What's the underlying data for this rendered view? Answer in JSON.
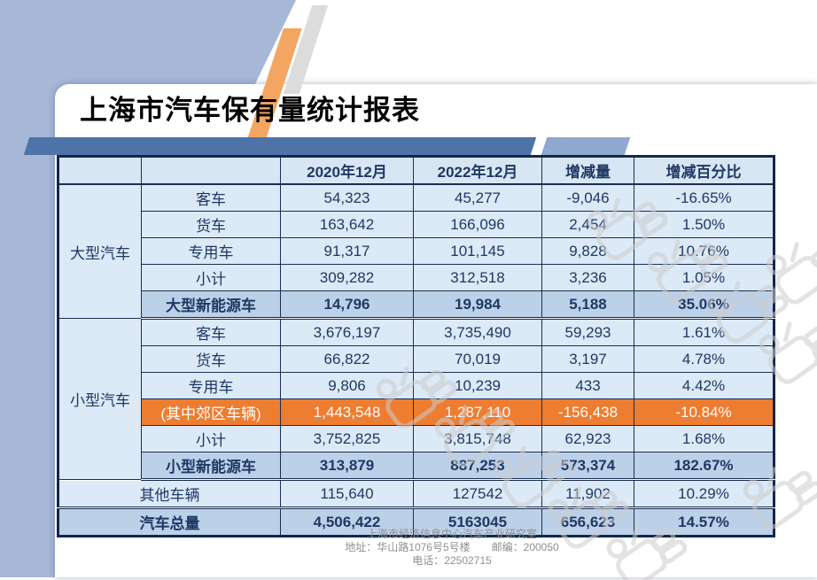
{
  "title": "上海市汽车保有量统计报表",
  "table": {
    "headers": [
      "",
      "",
      "2020年12月",
      "2022年12月",
      "增减量",
      "增减百分比"
    ],
    "rows": [
      {
        "group": {
          "label": "大型汽车",
          "rowspan": 5
        },
        "label": "客车",
        "values": [
          "54,323",
          "45,277",
          "-9,046",
          "-16.65%"
        ],
        "style": "normal"
      },
      {
        "label": "货车",
        "values": [
          "163,642",
          "166,096",
          "2,454",
          "1.50%"
        ],
        "style": "normal"
      },
      {
        "label": "专用车",
        "values": [
          "91,317",
          "101,145",
          "9,828",
          "10.76%"
        ],
        "style": "normal"
      },
      {
        "label": "小计",
        "values": [
          "309,282",
          "312,518",
          "3,236",
          "1.05%"
        ],
        "style": "normal"
      },
      {
        "label": "大型新能源车",
        "values": [
          "14,796",
          "19,984",
          "5,188",
          "35.06%"
        ],
        "style": "highlight",
        "section_end": true
      },
      {
        "group": {
          "label": "小型汽车",
          "rowspan": 6
        },
        "label": "客车",
        "values": [
          "3,676,197",
          "3,735,490",
          "59,293",
          "1.61%"
        ],
        "style": "normal"
      },
      {
        "label": "货车",
        "values": [
          "66,822",
          "70,019",
          "3,197",
          "4.78%"
        ],
        "style": "normal"
      },
      {
        "label": "专用车",
        "values": [
          "9,806",
          "10,239",
          "433",
          "4.42%"
        ],
        "style": "normal"
      },
      {
        "label": "(其中郊区车辆)",
        "values": [
          "1,443,548",
          "1,287,110",
          "-156,438",
          "-10.84%"
        ],
        "style": "orange"
      },
      {
        "label": "小计",
        "values": [
          "3,752,825",
          "3,815,748",
          "62,923",
          "1.68%"
        ],
        "style": "normal"
      },
      {
        "label": "小型新能源车",
        "values": [
          "313,879",
          "887,253",
          "573,374",
          "182.67%"
        ],
        "style": "highlight",
        "section_end": true
      },
      {
        "label": "其他车辆",
        "colspan": 2,
        "values": [
          "115,640",
          "127542",
          "11,902",
          "10.29%"
        ],
        "style": "normal",
        "section_end": true
      },
      {
        "label": "汽车总量",
        "colspan": 2,
        "values": [
          "4,506,422",
          "5163045",
          "656,623",
          "14.57%"
        ],
        "style": "total"
      }
    ]
  },
  "footer": {
    "line1": "上海市经济信息中心汽车产业研究室",
    "line2": "地址：华山路1076号5号楼　　邮编：200050",
    "line3": "电话：22502715"
  },
  "watermark": {
    "name": "hand-stamp-watermark"
  },
  "colors": {
    "accent_blue": "#a7b7d7",
    "band_dark": "#4e73a8",
    "band_light": "#8ea8d0",
    "stripe_orange": "#f3a561",
    "cell_bg": "#dce9f6",
    "group_bg": "#cfe0f1",
    "highlight_bg": "#bcd1e8",
    "orange_row_bg": "#ed7d31",
    "text_navy": "#1f3864",
    "border_navy": "#14274a"
  }
}
